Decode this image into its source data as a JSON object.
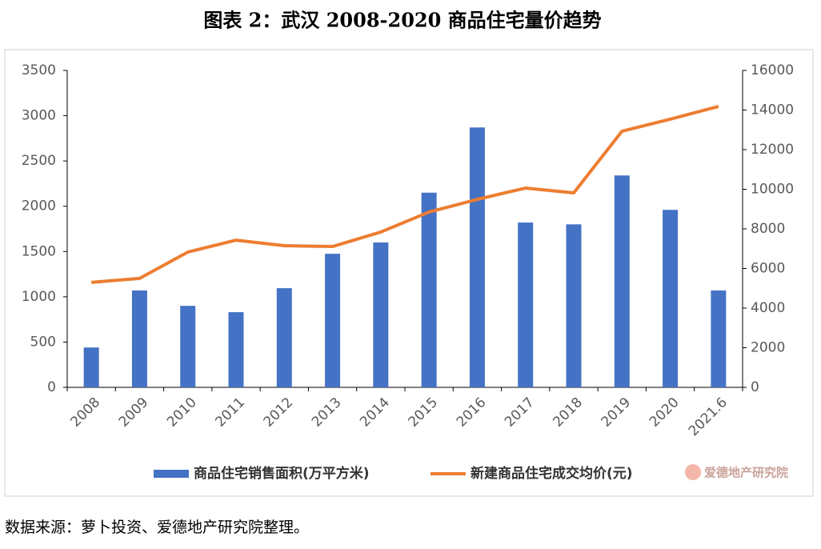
{
  "chart_data": {
    "type": "combo",
    "title": "图表 2：武汉 2008-2020 商品住宅量价趋势",
    "categories": [
      "2008",
      "2009",
      "2010",
      "2011",
      "2012",
      "2013",
      "2014",
      "2015",
      "2016",
      "2017",
      "2018",
      "2019",
      "2020",
      "2021.6"
    ],
    "series": [
      {
        "name": "商品住宅销售面积(万平方米)",
        "type": "bar",
        "color": "#4472c4",
        "values": [
          440,
          1070,
          900,
          830,
          1095,
          1475,
          1600,
          2150,
          2870,
          1820,
          1800,
          2340,
          1960,
          1070
        ]
      },
      {
        "name": "新建商品住宅成交均价(元)",
        "type": "line",
        "axis": "y2",
        "color": "#ed7d31",
        "values": [
          5300,
          5500,
          6830,
          7430,
          7150,
          7110,
          7840,
          8850,
          9490,
          10060,
          9820,
          12930,
          13540,
          14180
        ]
      }
    ],
    "ylim": [
      0,
      3500
    ],
    "yticks": [
      0,
      500,
      1000,
      1500,
      2000,
      2500,
      3000,
      3500
    ],
    "y2lim": [
      0,
      16000
    ],
    "y2ticks": [
      0,
      2000,
      4000,
      6000,
      8000,
      10000,
      12000,
      14000,
      16000
    ],
    "grid": false,
    "legend": "bottom"
  },
  "watermark": "爱德地产研究院",
  "source": "数据来源：萝卜投资、爱德地产研究院整理。"
}
